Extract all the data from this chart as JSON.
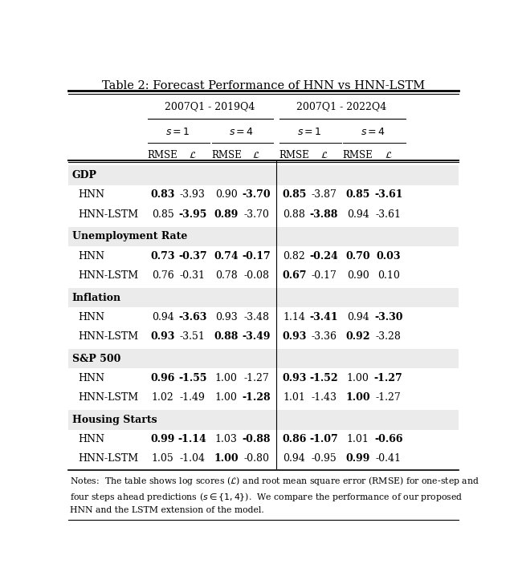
{
  "title": "Table 2: Forecast Performance of HNN vs HNN-LSTM",
  "period1": "2007Q1 - 2019Q4",
  "period2": "2007Q1 - 2022Q4",
  "s_headers": [
    "1",
    "4",
    "1",
    "4"
  ],
  "sections": [
    {
      "name": "GDP",
      "rows": [
        {
          "model": "HNN",
          "values": [
            "0.83",
            "-3.93",
            "0.90",
            "-3.70",
            "0.85",
            "-3.87",
            "0.85",
            "-3.61"
          ],
          "bold": [
            true,
            false,
            false,
            true,
            true,
            false,
            true,
            true
          ]
        },
        {
          "model": "HNN-LSTM",
          "values": [
            "0.85",
            "-3.95",
            "0.89",
            "-3.70",
            "0.88",
            "-3.88",
            "0.94",
            "-3.61"
          ],
          "bold": [
            false,
            true,
            true,
            false,
            false,
            true,
            false,
            false
          ]
        }
      ]
    },
    {
      "name": "Unemployment Rate",
      "rows": [
        {
          "model": "HNN",
          "values": [
            "0.73",
            "-0.37",
            "0.74",
            "-0.17",
            "0.82",
            "-0.24",
            "0.70",
            "0.03"
          ],
          "bold": [
            true,
            true,
            true,
            true,
            false,
            true,
            true,
            true
          ]
        },
        {
          "model": "HNN-LSTM",
          "values": [
            "0.76",
            "-0.31",
            "0.78",
            "-0.08",
            "0.67",
            "-0.17",
            "0.90",
            "0.10"
          ],
          "bold": [
            false,
            false,
            false,
            false,
            true,
            false,
            false,
            false
          ]
        }
      ]
    },
    {
      "name": "Inflation",
      "rows": [
        {
          "model": "HNN",
          "values": [
            "0.94",
            "-3.63",
            "0.93",
            "-3.48",
            "1.14",
            "-3.41",
            "0.94",
            "-3.30"
          ],
          "bold": [
            false,
            true,
            false,
            false,
            false,
            true,
            false,
            true
          ]
        },
        {
          "model": "HNN-LSTM",
          "values": [
            "0.93",
            "-3.51",
            "0.88",
            "-3.49",
            "0.93",
            "-3.36",
            "0.92",
            "-3.28"
          ],
          "bold": [
            true,
            false,
            true,
            true,
            true,
            false,
            true,
            false
          ]
        }
      ]
    },
    {
      "name": "S&P 500",
      "rows": [
        {
          "model": "HNN",
          "values": [
            "0.96",
            "-1.55",
            "1.00",
            "-1.27",
            "0.93",
            "-1.52",
            "1.00",
            "-1.27"
          ],
          "bold": [
            true,
            true,
            false,
            false,
            true,
            true,
            false,
            true
          ]
        },
        {
          "model": "HNN-LSTM",
          "values": [
            "1.02",
            "-1.49",
            "1.00",
            "-1.28",
            "1.01",
            "-1.43",
            "1.00",
            "-1.27"
          ],
          "bold": [
            false,
            false,
            false,
            true,
            false,
            false,
            true,
            false
          ]
        }
      ]
    },
    {
      "name": "Housing Starts",
      "rows": [
        {
          "model": "HNN",
          "values": [
            "0.99",
            "-1.14",
            "1.03",
            "-0.88",
            "0.86",
            "-1.07",
            "1.01",
            "-0.66"
          ],
          "bold": [
            true,
            true,
            false,
            true,
            true,
            true,
            false,
            true
          ]
        },
        {
          "model": "HNN-LSTM",
          "values": [
            "1.05",
            "-1.04",
            "1.00",
            "-0.80",
            "0.94",
            "-0.95",
            "0.99",
            "-0.41"
          ],
          "bold": [
            false,
            false,
            true,
            false,
            false,
            false,
            true,
            false
          ]
        }
      ]
    }
  ],
  "notes": "Notes:  The table shows log scores ($\\mathcal{L}$) and root mean square error (RMSE) for one-step and\nfour steps ahead predictions ($s \\in \\{1, 4\\}$).  We compare the performance of our proposed\nHNN and the LSTM extension of the model.",
  "bg_color": "#ffffff",
  "section_bg": "#ebebeb"
}
